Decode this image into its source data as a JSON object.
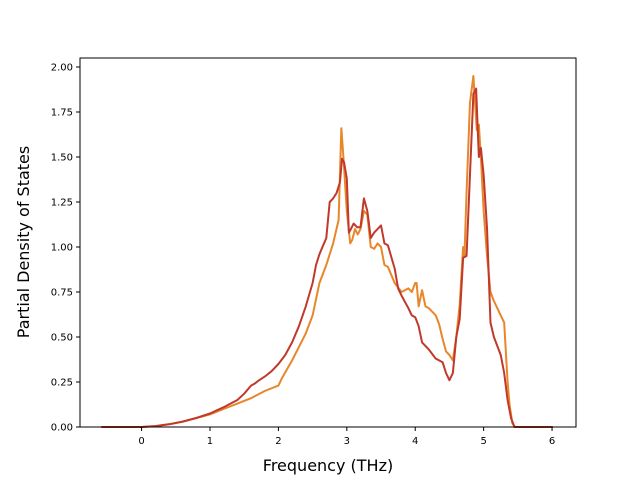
{
  "chart_data": {
    "type": "line",
    "title": "",
    "xlabel": "Frequency (THz)",
    "ylabel": "Partial Density of States",
    "xlim": [
      -0.9,
      6.35
    ],
    "ylim": [
      0,
      2.05
    ],
    "xticks": [
      0,
      1,
      2,
      3,
      4,
      5,
      6
    ],
    "xtick_labels": [
      "0",
      "1",
      "2",
      "3",
      "4",
      "5",
      "6"
    ],
    "yticks": [
      0,
      0.25,
      0.5,
      0.75,
      1.0,
      1.25,
      1.5,
      1.75,
      2.0
    ],
    "ytick_labels": [
      "0.00",
      "0.25",
      "0.50",
      "0.75",
      "1.00",
      "1.25",
      "1.50",
      "1.75",
      "2.00"
    ],
    "grid": false,
    "legend": "none",
    "series": [
      {
        "color": "#e8862a",
        "x": [
          -0.58,
          0,
          0.2,
          0.4,
          0.6,
          0.8,
          1.0,
          1.2,
          1.4,
          1.6,
          1.8,
          2.0,
          2.05,
          2.2,
          2.4,
          2.5,
          2.6,
          2.7,
          2.8,
          2.88,
          2.92,
          2.95,
          3.0,
          3.05,
          3.08,
          3.12,
          3.16,
          3.2,
          3.25,
          3.3,
          3.35,
          3.4,
          3.45,
          3.5,
          3.55,
          3.6,
          3.7,
          3.8,
          3.9,
          3.95,
          4.0,
          4.02,
          4.05,
          4.1,
          4.15,
          4.2,
          4.3,
          4.35,
          4.4,
          4.45,
          4.5,
          4.55,
          4.6,
          4.65,
          4.7,
          4.72,
          4.75,
          4.8,
          4.85,
          4.9,
          4.93,
          4.96,
          5.0,
          5.05,
          5.1,
          5.15,
          5.2,
          5.25,
          5.3,
          5.35,
          5.38,
          5.42,
          5.46,
          5.5,
          5.6,
          6.0
        ],
        "y": [
          0,
          0,
          0.005,
          0.015,
          0.03,
          0.05,
          0.07,
          0.1,
          0.13,
          0.16,
          0.2,
          0.23,
          0.27,
          0.37,
          0.52,
          0.62,
          0.8,
          0.9,
          1.02,
          1.15,
          1.66,
          1.5,
          1.2,
          1.02,
          1.04,
          1.1,
          1.07,
          1.1,
          1.2,
          1.18,
          1.0,
          0.99,
          1.02,
          1.0,
          0.9,
          0.89,
          0.8,
          0.75,
          0.77,
          0.75,
          0.8,
          0.8,
          0.67,
          0.76,
          0.67,
          0.66,
          0.62,
          0.57,
          0.49,
          0.42,
          0.4,
          0.37,
          0.5,
          0.68,
          1.0,
          0.95,
          1.3,
          1.8,
          1.95,
          1.65,
          1.68,
          1.5,
          1.2,
          0.95,
          0.75,
          0.7,
          0.66,
          0.62,
          0.58,
          0.25,
          0.12,
          0.02,
          0,
          0,
          0,
          0
        ]
      },
      {
        "color": "#c0392b",
        "x": [
          -0.58,
          0,
          0.2,
          0.4,
          0.6,
          0.8,
          1.0,
          1.2,
          1.4,
          1.5,
          1.6,
          1.65,
          1.7,
          1.8,
          1.9,
          2.0,
          2.1,
          2.2,
          2.3,
          2.4,
          2.5,
          2.55,
          2.6,
          2.7,
          2.75,
          2.8,
          2.85,
          2.9,
          2.93,
          2.96,
          3.0,
          3.03,
          3.06,
          3.1,
          3.15,
          3.2,
          3.25,
          3.3,
          3.35,
          3.4,
          3.5,
          3.55,
          3.6,
          3.7,
          3.75,
          3.8,
          3.9,
          3.95,
          4.0,
          4.05,
          4.1,
          4.2,
          4.3,
          4.4,
          4.45,
          4.5,
          4.55,
          4.6,
          4.65,
          4.7,
          4.75,
          4.8,
          4.85,
          4.89,
          4.93,
          4.96,
          5.0,
          5.05,
          5.1,
          5.15,
          5.2,
          5.25,
          5.3,
          5.35,
          5.4,
          5.45,
          5.5,
          6.0
        ],
        "y": [
          0,
          0,
          0.005,
          0.015,
          0.03,
          0.05,
          0.075,
          0.11,
          0.15,
          0.185,
          0.23,
          0.24,
          0.255,
          0.28,
          0.31,
          0.35,
          0.4,
          0.47,
          0.56,
          0.67,
          0.8,
          0.9,
          0.96,
          1.05,
          1.25,
          1.27,
          1.3,
          1.36,
          1.49,
          1.47,
          1.38,
          1.08,
          1.1,
          1.13,
          1.11,
          1.11,
          1.27,
          1.2,
          1.05,
          1.08,
          1.12,
          1.02,
          1.01,
          0.88,
          0.77,
          0.73,
          0.66,
          0.62,
          0.61,
          0.56,
          0.47,
          0.43,
          0.38,
          0.36,
          0.3,
          0.26,
          0.3,
          0.5,
          0.6,
          0.94,
          0.95,
          1.4,
          1.85,
          1.88,
          1.5,
          1.55,
          1.4,
          1.1,
          0.58,
          0.5,
          0.45,
          0.4,
          0.3,
          0.15,
          0.05,
          0,
          0,
          0
        ]
      }
    ]
  }
}
